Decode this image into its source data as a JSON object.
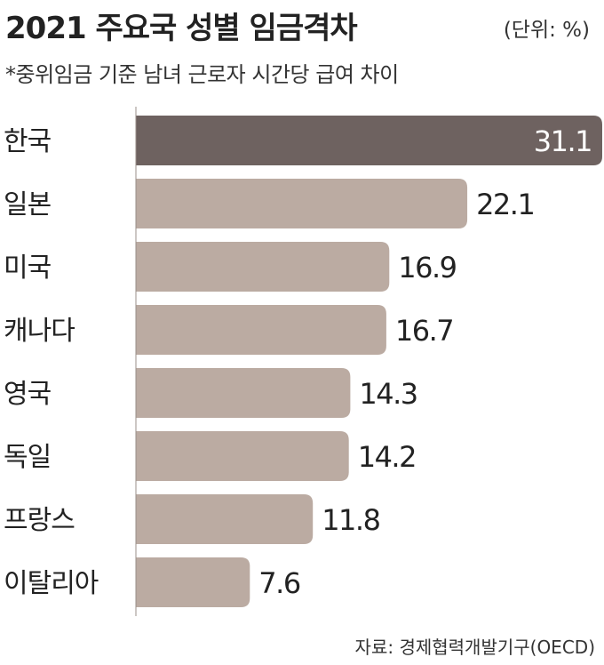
{
  "title": "2021 주요국 성별 임금격차",
  "unit": "(단위: %)",
  "subtitle": "*중위임금 기준 남녀 근로자 시간당 급여 차이",
  "source": "자료: 경제협력개발기구(OECD)",
  "colors": {
    "highlight": "#6e6260",
    "bar": "#bbaba2",
    "highlight_text": "#ffffff",
    "text": "#222222"
  },
  "chart_data": {
    "type": "bar",
    "orientation": "horizontal",
    "title": "2021 주요국 성별 임금격차",
    "xlabel": "",
    "ylabel": "",
    "xlim": [
      0,
      31.1
    ],
    "grid": false,
    "categories": [
      "한국",
      "일본",
      "미국",
      "캐나다",
      "영국",
      "독일",
      "프랑스",
      "이탈리아"
    ],
    "values": [
      31.1,
      22.1,
      16.9,
      16.7,
      14.3,
      14.2,
      11.8,
      7.6
    ],
    "value_labels": [
      "31.1",
      "22.1",
      "16.9",
      "16.7",
      "14.3",
      "14.2",
      "11.8",
      "7.6"
    ],
    "highlight_index": 0
  }
}
